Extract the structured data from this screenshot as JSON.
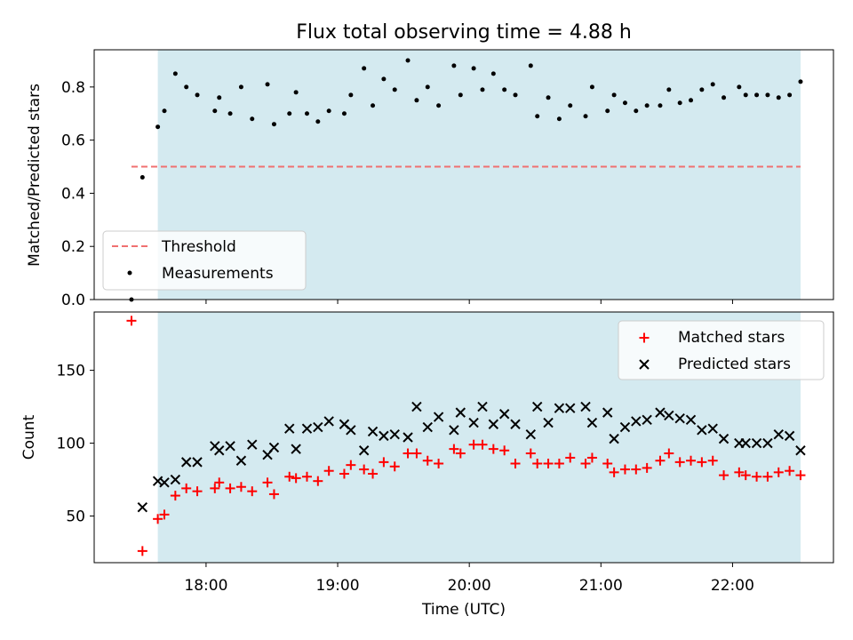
{
  "chart_data": [
    {
      "type": "scatter",
      "title": "Flux total observing time = 4.88 h",
      "xlabel": "",
      "ylabel": "Matched/Predicted stars",
      "xlim": [
        "17:09",
        "22:46"
      ],
      "ylim": [
        0,
        0.94
      ],
      "y_ticks": [
        0.0,
        0.2,
        0.4,
        0.6,
        0.8
      ],
      "y_tick_labels": [
        "0.0",
        "0.2",
        "0.4",
        "0.6",
        "0.8"
      ],
      "shaded_region": {
        "x_start": "17:38",
        "x_end": "22:31",
        "color": "#d4eaf0"
      },
      "threshold": {
        "name": "Threshold",
        "value": 0.5,
        "x_start": "17:26",
        "x_end": "22:31",
        "color": "#f07070"
      },
      "legend": {
        "position": "lower-left",
        "entries": [
          "Threshold",
          "Measurements"
        ]
      },
      "series": [
        {
          "name": "Measurements",
          "color": "#000000",
          "marker": "dot",
          "points": [
            [
              "17:26",
              0.0
            ],
            [
              "17:31",
              0.46
            ],
            [
              "17:38",
              0.65
            ],
            [
              "17:41",
              0.71
            ],
            [
              "17:46",
              0.85
            ],
            [
              "17:51",
              0.8
            ],
            [
              "17:56",
              0.77
            ],
            [
              "18:04",
              0.71
            ],
            [
              "18:06",
              0.76
            ],
            [
              "18:11",
              0.7
            ],
            [
              "18:16",
              0.8
            ],
            [
              "18:21",
              0.68
            ],
            [
              "18:28",
              0.81
            ],
            [
              "18:31",
              0.66
            ],
            [
              "18:38",
              0.7
            ],
            [
              "18:41",
              0.78
            ],
            [
              "18:46",
              0.7
            ],
            [
              "18:51",
              0.67
            ],
            [
              "18:56",
              0.71
            ],
            [
              "19:03",
              0.7
            ],
            [
              "19:06",
              0.77
            ],
            [
              "19:12",
              0.87
            ],
            [
              "19:16",
              0.73
            ],
            [
              "19:21",
              0.83
            ],
            [
              "19:26",
              0.79
            ],
            [
              "19:32",
              0.9
            ],
            [
              "19:36",
              0.75
            ],
            [
              "19:41",
              0.8
            ],
            [
              "19:46",
              0.73
            ],
            [
              "19:53",
              0.88
            ],
            [
              "19:56",
              0.77
            ],
            [
              "20:02",
              0.87
            ],
            [
              "20:06",
              0.79
            ],
            [
              "20:11",
              0.85
            ],
            [
              "20:16",
              0.79
            ],
            [
              "20:21",
              0.77
            ],
            [
              "20:28",
              0.88
            ],
            [
              "20:31",
              0.69
            ],
            [
              "20:36",
              0.76
            ],
            [
              "20:41",
              0.68
            ],
            [
              "20:46",
              0.73
            ],
            [
              "20:53",
              0.69
            ],
            [
              "20:56",
              0.8
            ],
            [
              "21:03",
              0.71
            ],
            [
              "21:06",
              0.77
            ],
            [
              "21:11",
              0.74
            ],
            [
              "21:16",
              0.71
            ],
            [
              "21:21",
              0.73
            ],
            [
              "21:27",
              0.73
            ],
            [
              "21:31",
              0.79
            ],
            [
              "21:36",
              0.74
            ],
            [
              "21:41",
              0.75
            ],
            [
              "21:46",
              0.79
            ],
            [
              "21:51",
              0.81
            ],
            [
              "21:56",
              0.76
            ],
            [
              "22:03",
              0.8
            ],
            [
              "22:06",
              0.77
            ],
            [
              "22:11",
              0.77
            ],
            [
              "22:16",
              0.77
            ],
            [
              "22:21",
              0.76
            ],
            [
              "22:26",
              0.77
            ],
            [
              "22:31",
              0.82
            ]
          ]
        }
      ]
    },
    {
      "type": "scatter",
      "title": "",
      "xlabel": "Time (UTC)",
      "ylabel": "Count",
      "xlim": [
        "17:09",
        "22:46"
      ],
      "ylim": [
        18,
        190
      ],
      "y_ticks": [
        50,
        100,
        150
      ],
      "y_tick_labels": [
        "50",
        "100",
        "150"
      ],
      "x_ticks": [
        "18:00",
        "19:00",
        "20:00",
        "21:00",
        "22:00"
      ],
      "x_tick_labels": [
        "18:00",
        "19:00",
        "20:00",
        "21:00",
        "22:00"
      ],
      "shaded_region": {
        "x_start": "17:38",
        "x_end": "22:31",
        "color": "#d4eaf0"
      },
      "legend": {
        "position": "top-right",
        "entries": [
          "Matched stars",
          "Predicted stars"
        ]
      },
      "series": [
        {
          "name": "Matched stars",
          "color": "#ff0000",
          "marker": "plus",
          "points": [
            [
              "17:26",
              184
            ],
            [
              "17:31",
              26
            ],
            [
              "17:38",
              48
            ],
            [
              "17:41",
              51
            ],
            [
              "17:46",
              64
            ],
            [
              "17:51",
              69
            ],
            [
              "17:56",
              67
            ],
            [
              "18:04",
              69
            ],
            [
              "18:06",
              73
            ],
            [
              "18:11",
              69
            ],
            [
              "18:16",
              70
            ],
            [
              "18:21",
              67
            ],
            [
              "18:28",
              73
            ],
            [
              "18:31",
              65
            ],
            [
              "18:38",
              77
            ],
            [
              "18:41",
              76
            ],
            [
              "18:46",
              77
            ],
            [
              "18:51",
              74
            ],
            [
              "18:56",
              81
            ],
            [
              "19:03",
              79
            ],
            [
              "19:06",
              85
            ],
            [
              "19:12",
              82
            ],
            [
              "19:16",
              79
            ],
            [
              "19:21",
              87
            ],
            [
              "19:26",
              84
            ],
            [
              "19:32",
              93
            ],
            [
              "19:36",
              93
            ],
            [
              "19:41",
              88
            ],
            [
              "19:46",
              86
            ],
            [
              "19:53",
              96
            ],
            [
              "19:56",
              93
            ],
            [
              "20:02",
              99
            ],
            [
              "20:06",
              99
            ],
            [
              "20:11",
              96
            ],
            [
              "20:16",
              95
            ],
            [
              "20:21",
              86
            ],
            [
              "20:28",
              93
            ],
            [
              "20:31",
              86
            ],
            [
              "20:36",
              86
            ],
            [
              "20:41",
              86
            ],
            [
              "20:46",
              90
            ],
            [
              "20:53",
              86
            ],
            [
              "20:56",
              90
            ],
            [
              "21:03",
              86
            ],
            [
              "21:06",
              80
            ],
            [
              "21:11",
              82
            ],
            [
              "21:16",
              82
            ],
            [
              "21:21",
              83
            ],
            [
              "21:27",
              88
            ],
            [
              "21:31",
              93
            ],
            [
              "21:36",
              87
            ],
            [
              "21:41",
              88
            ],
            [
              "21:46",
              87
            ],
            [
              "21:51",
              88
            ],
            [
              "21:56",
              78
            ],
            [
              "22:03",
              80
            ],
            [
              "22:06",
              78
            ],
            [
              "22:11",
              77
            ],
            [
              "22:16",
              77
            ],
            [
              "22:21",
              80
            ],
            [
              "22:26",
              81
            ],
            [
              "22:31",
              78
            ]
          ]
        },
        {
          "name": "Predicted stars",
          "color": "#000000",
          "marker": "x",
          "points": [
            [
              "17:31",
              56
            ],
            [
              "17:38",
              74
            ],
            [
              "17:41",
              73
            ],
            [
              "17:46",
              75
            ],
            [
              "17:51",
              87
            ],
            [
              "17:56",
              87
            ],
            [
              "18:04",
              98
            ],
            [
              "18:06",
              95
            ],
            [
              "18:11",
              98
            ],
            [
              "18:16",
              88
            ],
            [
              "18:21",
              99
            ],
            [
              "18:28",
              92
            ],
            [
              "18:31",
              97
            ],
            [
              "18:38",
              110
            ],
            [
              "18:41",
              96
            ],
            [
              "18:46",
              110
            ],
            [
              "18:51",
              111
            ],
            [
              "18:56",
              115
            ],
            [
              "19:03",
              113
            ],
            [
              "19:06",
              109
            ],
            [
              "19:12",
              95
            ],
            [
              "19:16",
              108
            ],
            [
              "19:21",
              105
            ],
            [
              "19:26",
              106
            ],
            [
              "19:32",
              104
            ],
            [
              "19:36",
              125
            ],
            [
              "19:41",
              111
            ],
            [
              "19:46",
              118
            ],
            [
              "19:53",
              109
            ],
            [
              "19:56",
              121
            ],
            [
              "20:02",
              114
            ],
            [
              "20:06",
              125
            ],
            [
              "20:11",
              113
            ],
            [
              "20:16",
              120
            ],
            [
              "20:21",
              113
            ],
            [
              "20:28",
              106
            ],
            [
              "20:31",
              125
            ],
            [
              "20:36",
              114
            ],
            [
              "20:41",
              124
            ],
            [
              "20:46",
              124
            ],
            [
              "20:53",
              125
            ],
            [
              "20:56",
              114
            ],
            [
              "21:03",
              121
            ],
            [
              "21:06",
              103
            ],
            [
              "21:11",
              111
            ],
            [
              "21:16",
              115
            ],
            [
              "21:21",
              116
            ],
            [
              "21:27",
              121
            ],
            [
              "21:31",
              119
            ],
            [
              "21:36",
              117
            ],
            [
              "21:41",
              116
            ],
            [
              "21:46",
              109
            ],
            [
              "21:51",
              110
            ],
            [
              "21:56",
              103
            ],
            [
              "22:03",
              100
            ],
            [
              "22:06",
              100
            ],
            [
              "22:11",
              100
            ],
            [
              "22:16",
              100
            ],
            [
              "22:21",
              106
            ],
            [
              "22:26",
              105
            ],
            [
              "22:31",
              95
            ]
          ]
        }
      ]
    }
  ]
}
